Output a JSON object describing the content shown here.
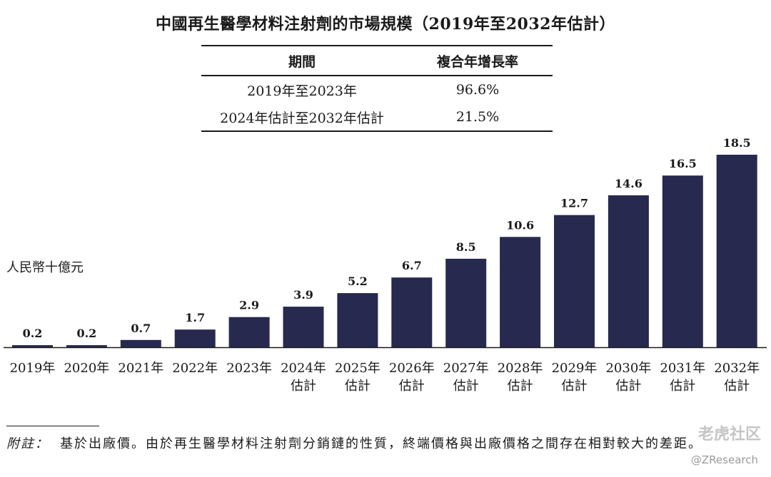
{
  "title": "中國再生醫學材料注射劑的市場規模（2019年至2032年估計）",
  "cagr_table": {
    "headers": [
      "期間",
      "複合年增長率"
    ],
    "rows": [
      [
        "2019年至2023年",
        "96.6%"
      ],
      [
        "2024年估計至2032年估計",
        "21.5%"
      ]
    ]
  },
  "colors": {
    "bar": "#28294f",
    "text": "#1a1a1a"
  },
  "chart_data": {
    "type": "bar",
    "categories": [
      [
        "2019年"
      ],
      [
        "2020年"
      ],
      [
        "2021年"
      ],
      [
        "2022年"
      ],
      [
        "2023年"
      ],
      [
        "2024年",
        "估計"
      ],
      [
        "2025年",
        "估計"
      ],
      [
        "2026年",
        "估計"
      ],
      [
        "2027年",
        "估計"
      ],
      [
        "2028年",
        "估計"
      ],
      [
        "2029年",
        "估計"
      ],
      [
        "2030年",
        "估計"
      ],
      [
        "2031年",
        "估計"
      ],
      [
        "2032年",
        "估計"
      ]
    ],
    "values": [
      0.2,
      0.2,
      0.7,
      1.7,
      2.9,
      3.9,
      5.2,
      6.7,
      8.5,
      10.6,
      12.7,
      14.6,
      16.5,
      18.5
    ],
    "data_labels": [
      "0.2",
      "0.2",
      "0.7",
      "1.7",
      "2.9",
      "3.9",
      "5.2",
      "6.7",
      "8.5",
      "10.6",
      "12.7",
      "14.6",
      "16.5",
      "18.5"
    ],
    "ylabel": "人民幣十億元",
    "ylim": [
      0,
      18.5
    ],
    "grid": false,
    "legend": "none"
  },
  "footnote": {
    "label": "附註：",
    "text": "基於出廠價。由於再生醫學材料注射劑分銷鏈的性質，終端價格與出廠價格之間存在相對較大的差距。"
  },
  "watermark": {
    "main": "老虎社区",
    "sub": "@ZResearch"
  }
}
